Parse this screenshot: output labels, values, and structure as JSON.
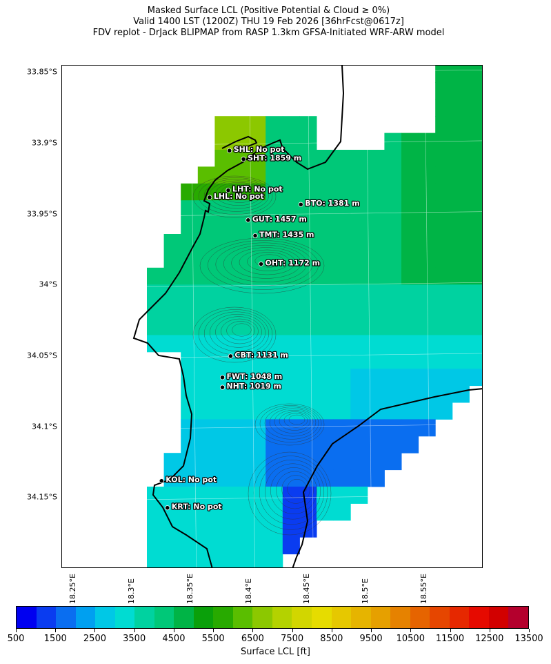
{
  "title": {
    "line1": "Masked Surface LCL (Positive Potential & Cloud ≥ 0%)",
    "line2": "Valid 1400 LST (1200Z) THU 19 Feb 2026 [36hrFcst@0617z]",
    "line3": "FDV replot - DrJack BLIPMAP from RASP 1.3km GFSA-Initiated WRF-ARW model"
  },
  "map": {
    "lat_range": [
      -34.2,
      -33.845
    ],
    "lon_range": [
      18.24,
      18.6
    ],
    "lat_labels": [
      "33.85°S",
      "33.9°S",
      "33.95°S",
      "34°S",
      "34.05°S",
      "34.1°S",
      "34.15°S"
    ],
    "lat_values": [
      -33.85,
      -33.9,
      -33.95,
      -34.0,
      -34.05,
      -34.1,
      -34.15
    ],
    "lon_labels": [
      "18.25°E",
      "18.3°E",
      "18.35°E",
      "18.4°E",
      "18.45°E",
      "18.5°E",
      "18.55°E"
    ],
    "lon_values": [
      18.25,
      18.3,
      18.35,
      18.4,
      18.45,
      18.5,
      18.55
    ]
  },
  "stations": [
    {
      "label": "SHL: No pot",
      "lon": 18.383,
      "lat": -33.905
    },
    {
      "label": "SHT: 1859 m",
      "lon": 18.395,
      "lat": -33.911
    },
    {
      "label": "LHT: No pot",
      "lon": 18.382,
      "lat": -33.933
    },
    {
      "label": "LHL: No pot",
      "lon": 18.366,
      "lat": -33.938
    },
    {
      "label": "BTO: 1381 m",
      "lon": 18.444,
      "lat": -33.943
    },
    {
      "label": "GUT: 1457 m",
      "lon": 18.399,
      "lat": -33.954
    },
    {
      "label": "TMT: 1435 m",
      "lon": 18.405,
      "lat": -33.965
    },
    {
      "label": "OHT: 1172 m",
      "lon": 18.41,
      "lat": -33.985
    },
    {
      "label": "CBT: 1131 m",
      "lon": 18.384,
      "lat": -34.05
    },
    {
      "label": "FWT: 1048 m",
      "lon": 18.377,
      "lat": -34.065
    },
    {
      "label": "NHT: 1019 m",
      "lon": 18.377,
      "lat": -34.072
    },
    {
      "label": "KOL: No pot",
      "lon": 18.325,
      "lat": -34.138
    },
    {
      "label": "KRT: No pot",
      "lon": 18.33,
      "lat": -34.157
    }
  ],
  "colorbar": {
    "label": "Surface LCL [ft]",
    "min": 500,
    "max": 13500,
    "tick_labels": [
      "500",
      "1500",
      "2500",
      "3500",
      "4500",
      "5500",
      "6500",
      "7500",
      "8500",
      "9500",
      "10500",
      "11500",
      "12500",
      "13500"
    ],
    "colors": [
      "#0000f0",
      "#0a3cf0",
      "#0a6ef0",
      "#00a0f0",
      "#00c8e6",
      "#00dcd2",
      "#00d2a0",
      "#00c878",
      "#00b446",
      "#0aa00a",
      "#28aa00",
      "#5abe00",
      "#8cc800",
      "#b4d200",
      "#d2d600",
      "#e6dc00",
      "#e6c800",
      "#e6b400",
      "#e6a000",
      "#e68200",
      "#e66400",
      "#e64600",
      "#e62800",
      "#e60a00",
      "#d20000",
      "#b4002d"
    ]
  }
}
